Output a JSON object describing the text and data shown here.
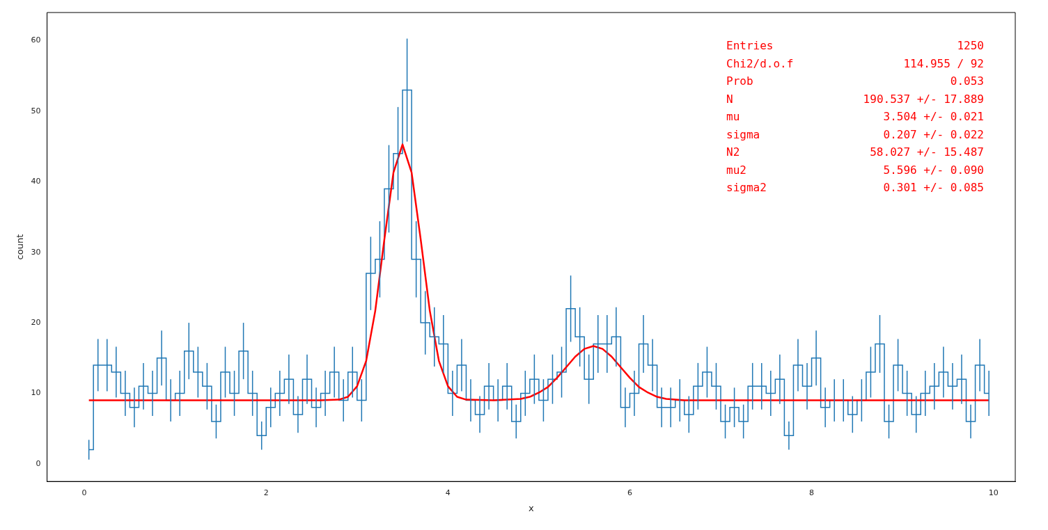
{
  "chart_data": {
    "type": "step",
    "xlabel": "x",
    "ylabel": "count",
    "xlim": [
      -0.41,
      10.24
    ],
    "ylim": [
      -2.5,
      64
    ],
    "xticks": [
      0,
      2,
      4,
      6,
      8,
      10
    ],
    "yticks": [
      0,
      10,
      20,
      30,
      40,
      50,
      60
    ],
    "x": [
      0.05,
      0.15,
      0.25,
      0.35,
      0.45,
      0.55,
      0.65,
      0.75,
      0.85,
      0.95,
      1.05,
      1.15,
      1.25,
      1.35,
      1.45,
      1.55,
      1.65,
      1.75,
      1.85,
      1.95,
      2.05,
      2.15,
      2.25,
      2.35,
      2.45,
      2.55,
      2.65,
      2.75,
      2.85,
      2.95,
      3.05,
      3.15,
      3.25,
      3.35,
      3.45,
      3.55,
      3.65,
      3.75,
      3.85,
      3.95,
      4.05,
      4.15,
      4.25,
      4.35,
      4.45,
      4.55,
      4.65,
      4.75,
      4.85,
      4.95,
      5.05,
      5.15,
      5.25,
      5.35,
      5.45,
      5.55,
      5.65,
      5.75,
      5.85,
      5.95,
      6.05,
      6.15,
      6.25,
      6.35,
      6.45,
      6.55,
      6.65,
      6.75,
      6.85,
      6.95,
      7.05,
      7.15,
      7.25,
      7.35,
      7.45,
      7.55,
      7.65,
      7.75,
      7.85,
      7.95,
      8.05,
      8.15,
      8.25,
      8.35,
      8.45,
      8.55,
      8.65,
      8.75,
      8.85,
      8.95,
      9.05,
      9.15,
      9.25,
      9.35,
      9.45,
      9.55,
      9.65,
      9.75,
      9.85,
      9.95
    ],
    "series": [
      {
        "color": "#1f77b4",
        "values": [
          2,
          14,
          14,
          13,
          10,
          8,
          11,
          10,
          15,
          9,
          10,
          16,
          13,
          11,
          6,
          13,
          10,
          16,
          10,
          4,
          8,
          10,
          12,
          7,
          12,
          8,
          10,
          13,
          9,
          13,
          9,
          27,
          29,
          39,
          44,
          53,
          29,
          20,
          18,
          17,
          10,
          14,
          9,
          7,
          11,
          9,
          11,
          6,
          10,
          12,
          9,
          12,
          13,
          22,
          18,
          12,
          17,
          17,
          18,
          8,
          10,
          17,
          14,
          8,
          8,
          9,
          7,
          11,
          13,
          11,
          6,
          8,
          6,
          11,
          11,
          10,
          12,
          4,
          14,
          11,
          15,
          8,
          9,
          9,
          7,
          9,
          13,
          17,
          6,
          14,
          10,
          7,
          10,
          11,
          13,
          11,
          12,
          6,
          14,
          10
        ],
        "errors": [
          1.4,
          3.7,
          3.7,
          3.6,
          3.2,
          2.8,
          3.3,
          3.2,
          3.9,
          3,
          3.2,
          4,
          3.6,
          3.3,
          2.4,
          3.6,
          3.2,
          4,
          3.2,
          2,
          2.8,
          3.2,
          3.5,
          2.6,
          3.5,
          2.8,
          3.2,
          3.6,
          3,
          3.6,
          3,
          5.2,
          5.4,
          6.2,
          6.6,
          7.3,
          5.4,
          4.5,
          4.2,
          4.1,
          3.2,
          3.7,
          3,
          2.6,
          3.3,
          3,
          3.3,
          2.4,
          3.2,
          3.5,
          3,
          3.5,
          3.6,
          4.7,
          4.2,
          3.5,
          4.1,
          4.1,
          4.2,
          2.8,
          3.2,
          4.1,
          3.7,
          2.8,
          2.8,
          3,
          2.6,
          3.3,
          3.6,
          3.3,
          2.4,
          2.8,
          2.4,
          3.3,
          3.3,
          3.2,
          3.5,
          2,
          3.7,
          3.3,
          3.9,
          2.8,
          3,
          3,
          2.6,
          3,
          3.6,
          4.1,
          2.4,
          3.7,
          3.2,
          2.6,
          3.2,
          3.3,
          3.6,
          3.3,
          3.5,
          2.4,
          3.7,
          3.2
        ]
      },
      {
        "type": "line",
        "color": "#ff0000",
        "x": [
          0.05,
          1,
          2,
          2.6,
          2.8,
          2.9,
          3,
          3.1,
          3.2,
          3.3,
          3.4,
          3.5,
          3.6,
          3.7,
          3.8,
          3.9,
          4,
          4.1,
          4.2,
          4.5,
          4.8,
          4.9,
          5,
          5.1,
          5.2,
          5.3,
          5.4,
          5.5,
          5.6,
          5.7,
          5.8,
          5.9,
          6,
          6.1,
          6.2,
          6.3,
          6.4,
          6.6,
          7,
          8,
          9.95
        ],
        "values": [
          9,
          9,
          9,
          9,
          9.1,
          9.5,
          11,
          14.6,
          21.7,
          31.8,
          41.3,
          45.3,
          41.3,
          31.8,
          21.7,
          14.6,
          11,
          9.5,
          9.1,
          9,
          9.2,
          9.5,
          10.1,
          10.9,
          12.2,
          13.7,
          15.2,
          16.3,
          16.7,
          16.3,
          15.2,
          13.7,
          12.2,
          10.9,
          10.1,
          9.5,
          9.2,
          9,
          9,
          9,
          9
        ]
      }
    ],
    "annotations": [
      "Entries 1250",
      "Chi2/d.o.f 114.955 / 92",
      "Prob 0.053",
      "N 190.537 +/- 17.889",
      "mu 3.504 +/- 0.021",
      "sigma 0.207 +/- 0.022",
      "N2 58.027 +/- 15.487",
      "mu2 5.596 +/- 0.090",
      "sigma2 0.301 +/- 0.085"
    ]
  }
}
